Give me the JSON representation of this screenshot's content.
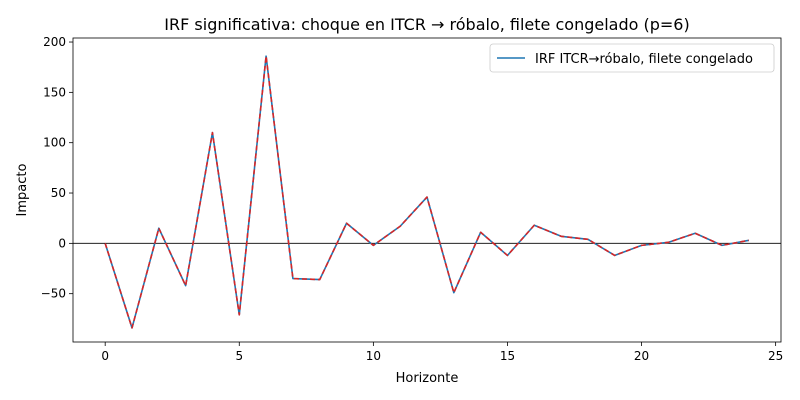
{
  "chart_data": {
    "type": "line",
    "title": "IRF significativa: choque en ITCR → róbalo, filete congelado (p=6)",
    "xlabel": "Horizonte",
    "ylabel": "Impacto",
    "xlim": [
      -1.2,
      25.2
    ],
    "ylim": [
      -98,
      204
    ],
    "xticks": [
      0,
      5,
      10,
      15,
      20,
      25
    ],
    "yticks": [
      -50,
      0,
      50,
      100,
      150,
      200
    ],
    "grid": false,
    "legend_position": "top-right",
    "zero_line": true,
    "x": [
      0,
      1,
      2,
      3,
      4,
      5,
      6,
      7,
      8,
      9,
      10,
      11,
      12,
      13,
      14,
      15,
      16,
      17,
      18,
      19,
      20,
      21,
      22,
      23,
      24
    ],
    "series": [
      {
        "name": "IRF ITCR→róbalo, filete congelado",
        "color": "#1f77b4",
        "values": [
          0,
          -84,
          15,
          -42,
          110,
          -71,
          186,
          -35,
          -36,
          20,
          -2,
          17,
          46,
          -49,
          11,
          -12,
          18,
          7,
          4,
          -12,
          -2,
          1,
          10,
          -2,
          3
        ]
      }
    ],
    "overlay": {
      "color": "#d62728",
      "style": "dashed",
      "values": [
        0,
        -84,
        15,
        -42,
        110,
        -71,
        186,
        -35,
        -36,
        20,
        -2,
        17,
        46,
        -49,
        11,
        -12,
        18,
        7,
        4,
        -12,
        -2,
        1,
        10,
        -2,
        3
      ]
    }
  }
}
